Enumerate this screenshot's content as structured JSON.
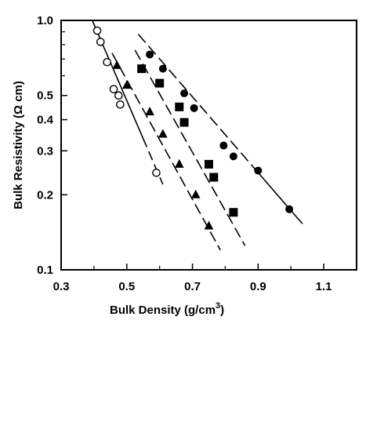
{
  "chart_data": {
    "type": "scatter",
    "title": "",
    "xlabel": "Bulk Density (g/cm",
    "xlabel_superscript": "3",
    "xlabel_suffix": ")",
    "ylabel": "Bulk Resistivity (Ω cm)",
    "xlim": [
      0.3,
      1.2
    ],
    "ylim": [
      0.1,
      1.0
    ],
    "y_scale": "log",
    "x_ticks": [
      0.3,
      0.5,
      0.7,
      0.9,
      1.1
    ],
    "x_tick_labels": [
      "0.3",
      "0.5",
      "0.7",
      "0.9",
      "1.1"
    ],
    "y_ticks": [
      0.1,
      0.2,
      0.3,
      0.4,
      0.5,
      1.0
    ],
    "y_tick_labels": [
      "0.1",
      "0.2",
      "0.3",
      "0.4",
      "0.5",
      "1.0"
    ],
    "grid": false,
    "legend": "none",
    "series": [
      {
        "marker": "open-circle",
        "color": "#000000",
        "x": [
          0.41,
          0.42,
          0.44,
          0.46,
          0.475,
          0.48,
          0.59
        ],
        "y": [
          0.91,
          0.82,
          0.68,
          0.53,
          0.5,
          0.46,
          0.245
        ],
        "fit": {
          "style": "solid-then-dashed",
          "x": [
            0.395,
            0.61
          ],
          "y": [
            1.0,
            0.22
          ]
        }
      },
      {
        "marker": "filled-triangle",
        "color": "#000000",
        "x": [
          0.47,
          0.5,
          0.57,
          0.61,
          0.66,
          0.71,
          0.75
        ],
        "y": [
          0.66,
          0.55,
          0.43,
          0.35,
          0.265,
          0.2,
          0.15
        ],
        "fit": {
          "style": "dashed",
          "x": [
            0.455,
            0.785
          ],
          "y": [
            0.74,
            0.12
          ]
        }
      },
      {
        "marker": "filled-square",
        "color": "#000000",
        "x": [
          0.545,
          0.6,
          0.66,
          0.675,
          0.75,
          0.765,
          0.825
        ],
        "y": [
          0.64,
          0.56,
          0.45,
          0.39,
          0.265,
          0.235,
          0.17
        ],
        "fit": {
          "style": "dashed",
          "x": [
            0.525,
            0.86
          ],
          "y": [
            0.76,
            0.125
          ]
        }
      },
      {
        "marker": "filled-circle",
        "color": "#000000",
        "x": [
          0.57,
          0.61,
          0.675,
          0.705,
          0.795,
          0.825,
          0.9,
          0.995
        ],
        "y": [
          0.73,
          0.64,
          0.51,
          0.445,
          0.315,
          0.285,
          0.25,
          0.175
        ],
        "fit": {
          "style": "dashed-then-solid",
          "x": [
            0.535,
            1.035
          ],
          "y": [
            0.88,
            0.153
          ]
        }
      }
    ]
  }
}
